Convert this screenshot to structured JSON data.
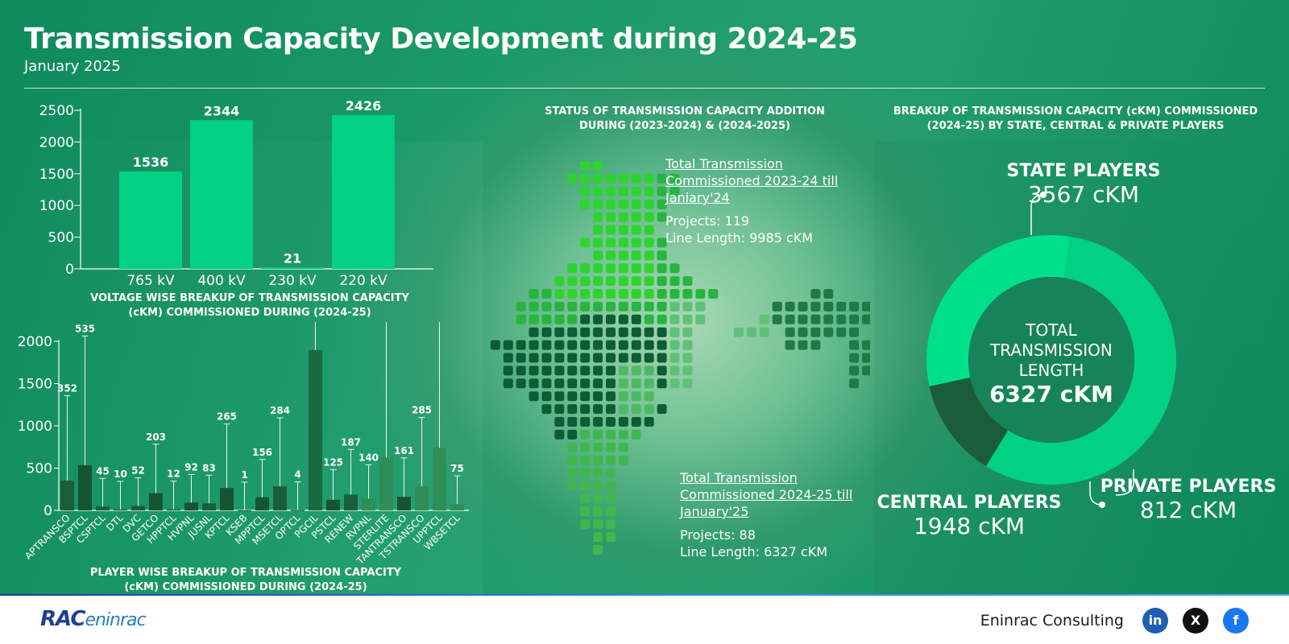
{
  "title": "Transmission Capacity Development during 2024-25",
  "subtitle": "January 2025",
  "colors": {
    "bright_green": "#00d183",
    "dark_green": "#1a5d3a",
    "mid_green": "#2b8a55",
    "map_light": "#2fd32f",
    "map_dark": "#0d5d34",
    "map_mid": "#3fae5c"
  },
  "chart_data": [
    {
      "type": "bar",
      "title": "VOLTAGE WISE BREAKUP OF TRANSMISSION CAPACITY (cKM) COMMISSIONED DURING (2024-25)",
      "categories": [
        "765 kV",
        "400 kV",
        "230 kV",
        "220 kV"
      ],
      "values": [
        1536,
        2344,
        21,
        2426
      ],
      "ylim": [
        0,
        2500
      ],
      "yticks": [
        0,
        500,
        1000,
        1500,
        2000,
        2500
      ],
      "grid": false
    },
    {
      "type": "bar",
      "title": "PLAYER WISE BREAKUP OF TRANSMISSION CAPACITY (cKM) COMMISSIONED DURING (2024-25)",
      "categories": [
        "APTRANSCO",
        "BSPTCL",
        "CSPTCL",
        "DTL",
        "DVC",
        "GETCO",
        "HPPTCL",
        "HVPNL",
        "JUSNL",
        "KPTCL",
        "KSEB",
        "MPPTCL",
        "MSETCL",
        "OPTCL",
        "PGCIL",
        "PSTCL",
        "RENEW",
        "RVPNL",
        "STERLITE",
        "TANTRANSCO",
        "TSTRANSCO",
        "UPPTCL",
        "WBSETCL"
      ],
      "values": [
        352,
        535,
        45,
        10,
        52,
        203,
        12,
        92,
        83,
        265,
        1,
        156,
        284,
        4,
        1896,
        125,
        187,
        140,
        625,
        161,
        285,
        739,
        75
      ],
      "ylim": [
        0,
        2000
      ],
      "yticks": [
        0,
        500,
        1000,
        1500,
        2000
      ],
      "error_bars": true,
      "grid": false
    },
    {
      "type": "pie",
      "title": "BREAKUP OF TRANSMISSION CAPACITY (cKM) COMMISSIONED (2024-25) BY STATE, CENTRAL & PRIVATE PLAYERS",
      "slices": [
        {
          "label": "STATE PLAYERS",
          "value": 3567,
          "display": "3567 cKM"
        },
        {
          "label": "PRIVATE PLAYERS",
          "value": 812,
          "display": "812 cKM"
        },
        {
          "label": "CENTRAL PLAYERS",
          "value": 1948,
          "display": "1948 cKM"
        }
      ],
      "center": {
        "line1": "TOTAL",
        "line2": "TRANSMISSION",
        "line3": "LENGTH",
        "total": "6327 cKM"
      }
    }
  ],
  "captions": {
    "voltage": "VOLTAGE WISE BREAKUP OF TRANSMISSION CAPACITY (cKM) COMMISSIONED DURING (2024-25)",
    "player": "PLAYER WISE BREAKUP OF TRANSMISSION CAPACITY (cKM) COMMISSIONED DURING (2024-25)",
    "map": "STATUS OF TRANSMISSION CAPACITY ADDITION DURING (2023-2024) & (2024-2025)",
    "donut": "BREAKUP OF TRANSMISSION CAPACITY (cKM) COMMISSIONED (2024-25) BY STATE, CENTRAL & PRIVATE PLAYERS"
  },
  "map": {
    "block1": {
      "heading": "Total Transmission Commissioned 2023-24 till Janiary'24",
      "projects": "Projects: 119",
      "length": "Line Length: 9985 cKM"
    },
    "block2": {
      "heading": "Total Transmission Commissioned 2024-25 till January'25",
      "projects": "Projects: 88",
      "length": "Line Length: 6327 cKM"
    }
  },
  "footer": {
    "company": "Eninrac Consulting",
    "logo_main": "RAC",
    "logo_sub": "eninrac",
    "social": [
      "linkedin-icon",
      "x-icon",
      "facebook-icon"
    ]
  }
}
